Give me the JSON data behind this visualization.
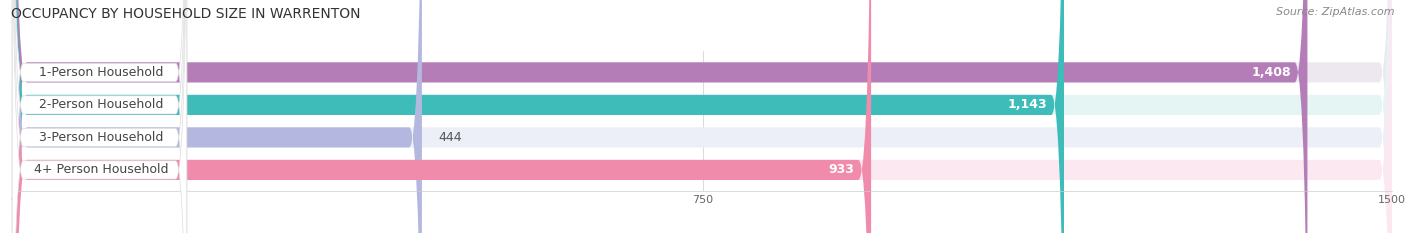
{
  "title": "OCCUPANCY BY HOUSEHOLD SIZE IN WARRENTON",
  "source": "Source: ZipAtlas.com",
  "categories": [
    "1-Person Household",
    "2-Person Household",
    "3-Person Household",
    "4+ Person Household"
  ],
  "values": [
    1408,
    1143,
    444,
    933
  ],
  "bar_colors": [
    "#b57db8",
    "#3dbcba",
    "#b4b8e0",
    "#f08bab"
  ],
  "bar_bg_colors": [
    "#ede8f0",
    "#e5f5f4",
    "#eceef8",
    "#fce8f0"
  ],
  "xlim": [
    0,
    1500
  ],
  "xticks": [
    0,
    750,
    1500
  ],
  "title_fontsize": 10,
  "source_fontsize": 8,
  "label_fontsize": 9,
  "value_fontsize": 9,
  "background_color": "#ffffff"
}
